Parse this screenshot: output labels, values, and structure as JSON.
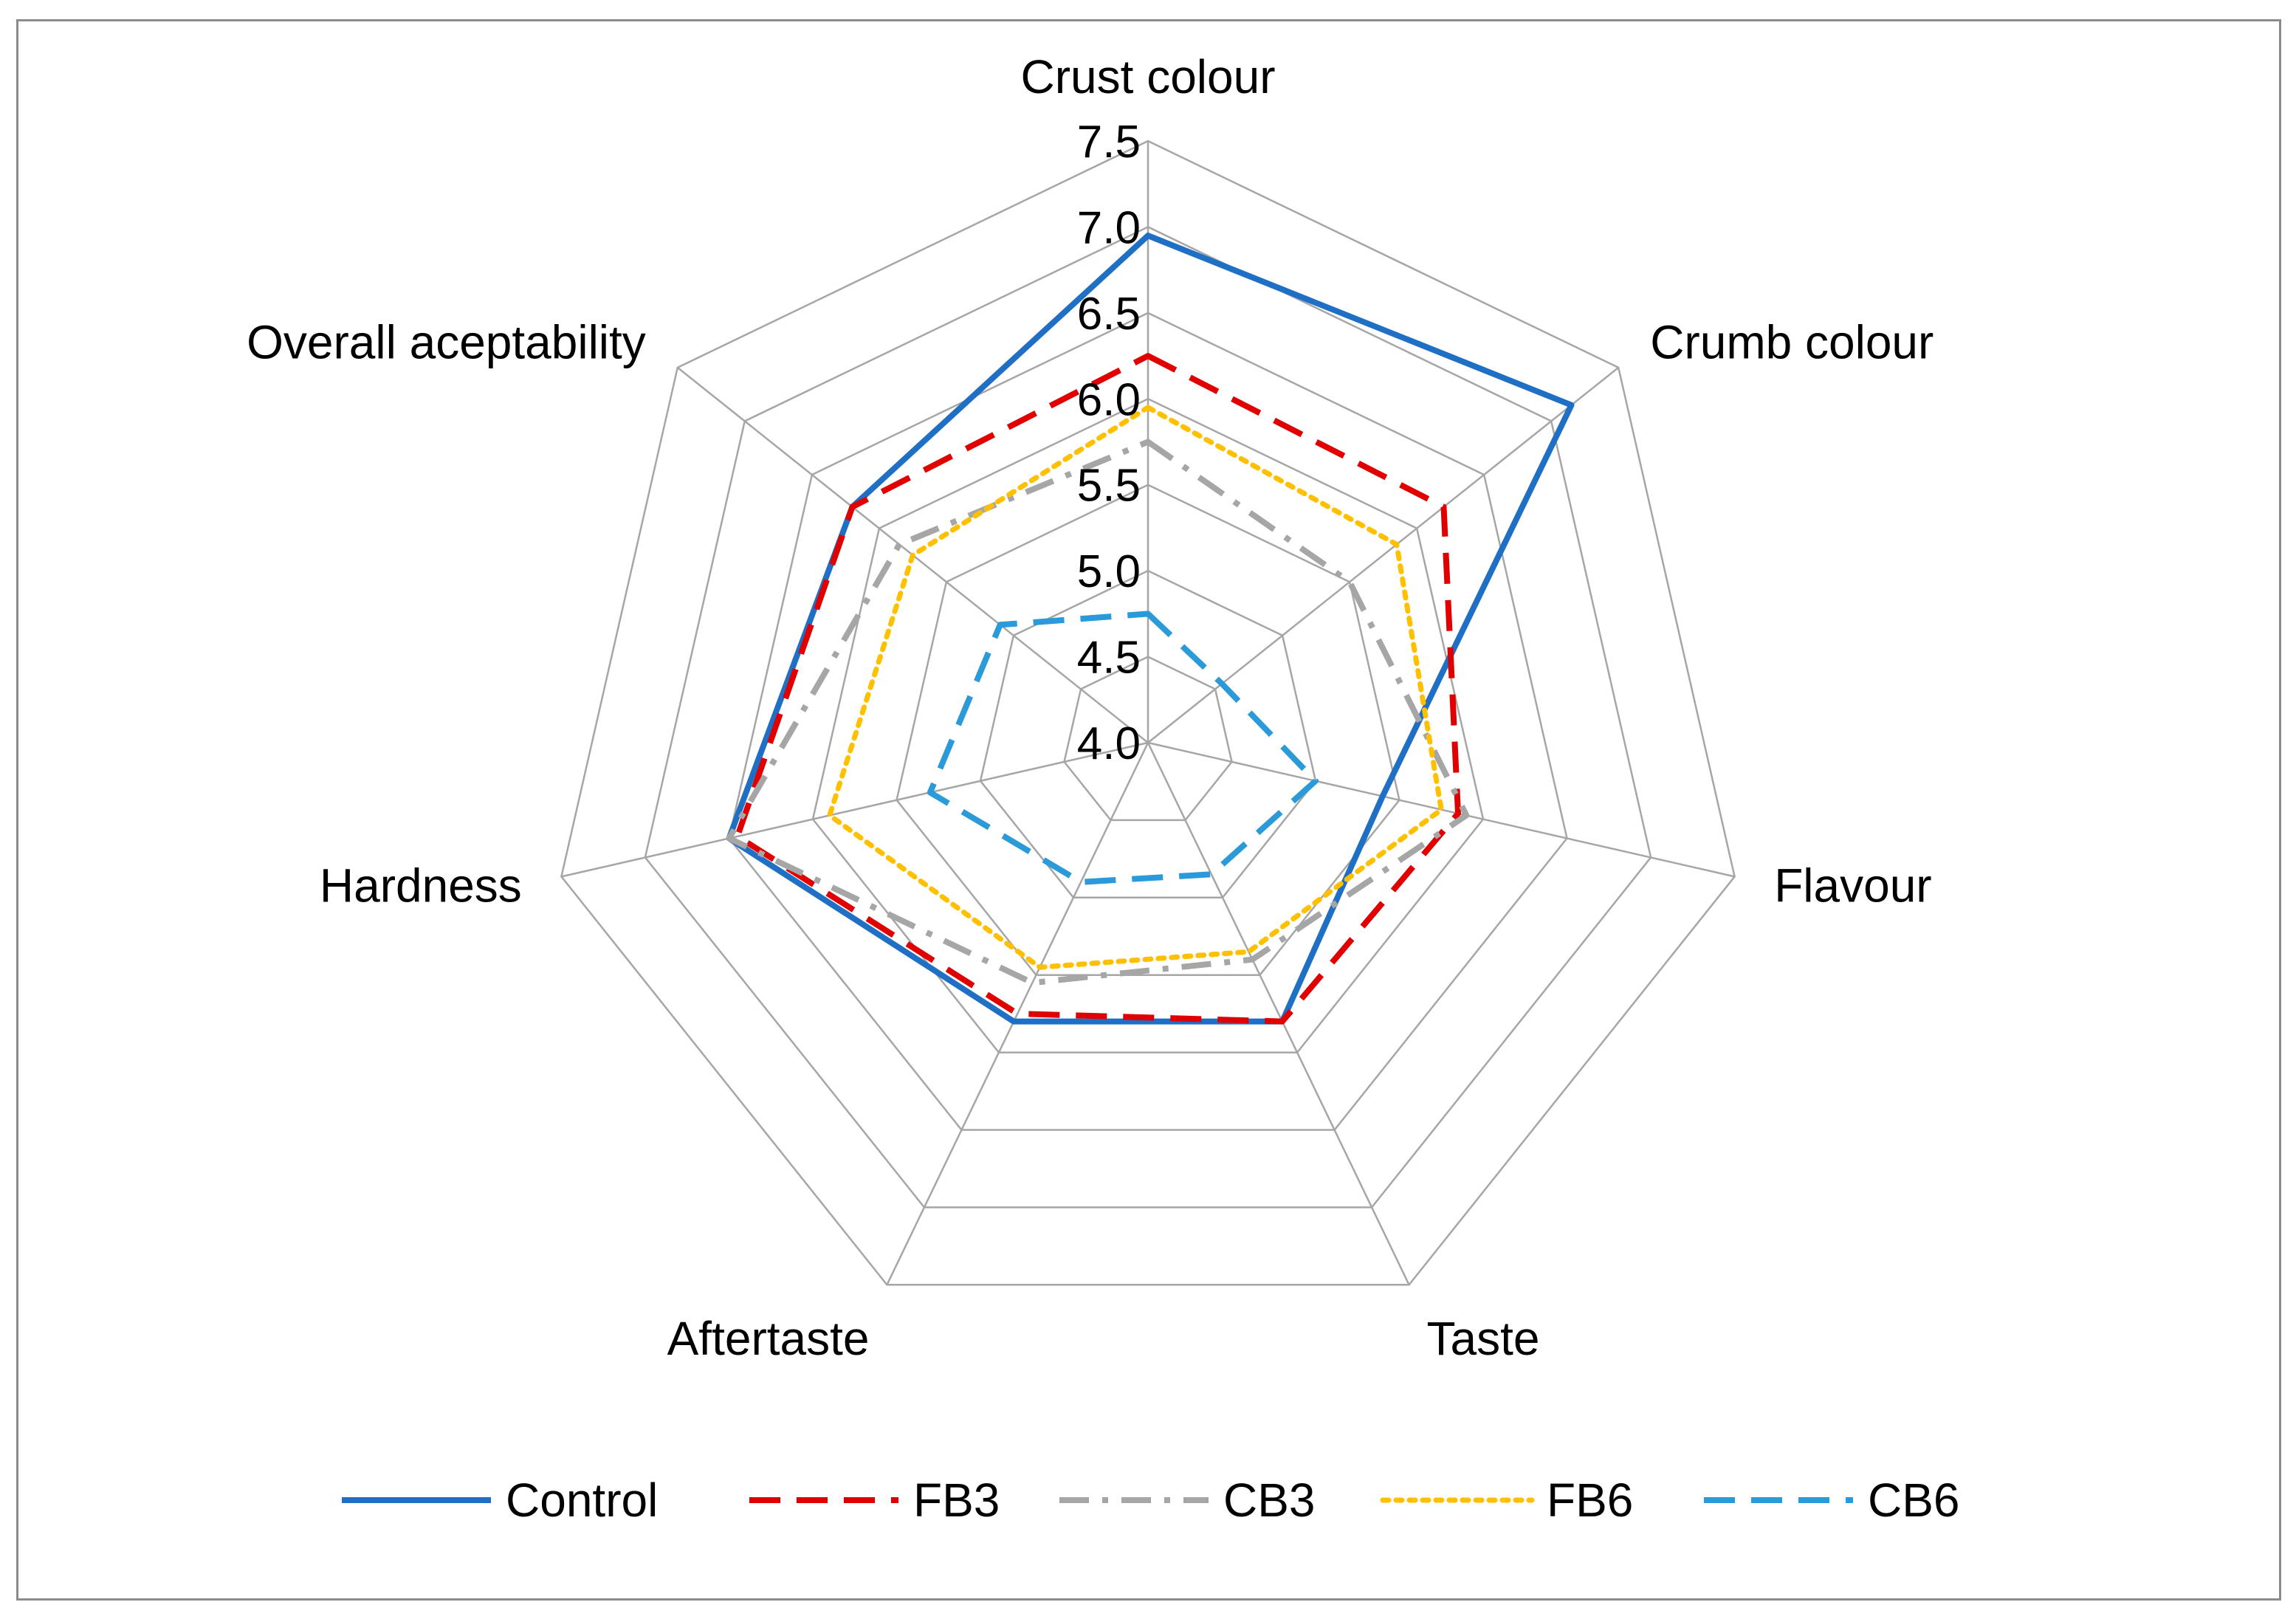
{
  "chart_data": {
    "type": "radar",
    "title": "",
    "axes": [
      "Crust colour",
      "Crumb colour",
      "Flavour",
      "Taste",
      "Aftertaste",
      "Hardness",
      "Overall aceptability"
    ],
    "range": [
      4.0,
      7.5
    ],
    "ticks": [
      "4.0",
      "4.5",
      "5.0",
      "5.5",
      "6.0",
      "6.5",
      "7.0",
      "7.5"
    ],
    "legend_position": "bottom",
    "series": [
      {
        "name": "Control",
        "color": "#1f6fc5",
        "style": "solid",
        "values": [
          6.95,
          7.15,
          5.4,
          5.8,
          5.8,
          6.5,
          6.2
        ]
      },
      {
        "name": "FB3",
        "color": "#e00000",
        "style": "dash",
        "values": [
          6.25,
          6.2,
          5.85,
          5.8,
          5.75,
          6.45,
          6.2
        ]
      },
      {
        "name": "CB3",
        "color": "#a6a6a6",
        "style": "dashdot",
        "values": [
          5.75,
          5.5,
          5.9,
          5.4,
          5.55,
          6.5,
          5.85
        ]
      },
      {
        "name": "FB6",
        "color": "#ffc000",
        "style": "dot",
        "values": [
          5.95,
          5.85,
          5.75,
          5.35,
          5.45,
          5.9,
          5.75
        ]
      },
      {
        "name": "CB6",
        "color": "#2a9ad8",
        "style": "dash",
        "values": [
          4.75,
          4.55,
          5.0,
          4.85,
          4.9,
          5.3,
          5.1
        ]
      }
    ]
  }
}
